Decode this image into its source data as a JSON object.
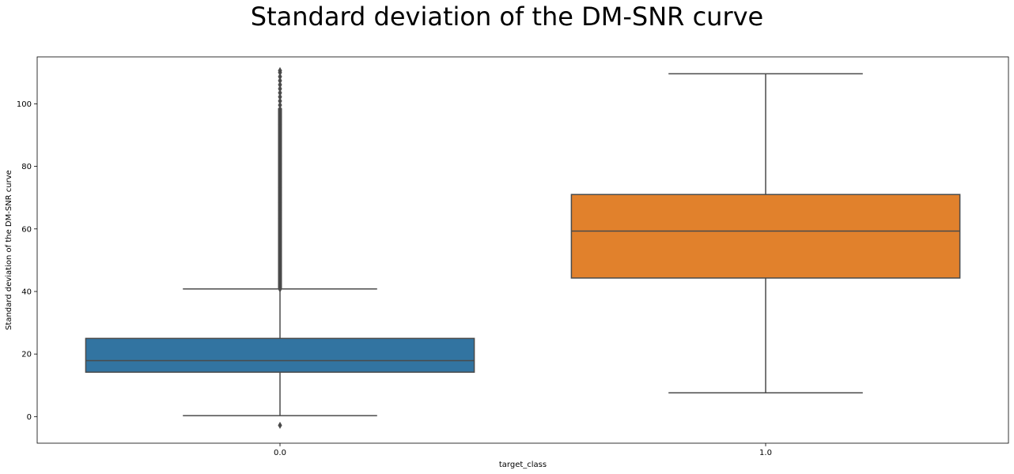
{
  "chart_data": {
    "type": "box",
    "title": "Standard deviation of the DM-SNR curve",
    "xlabel": "target_class",
    "ylabel": "Standard deviation of the DM-SNR curve",
    "categories": [
      "0.0",
      "1.0"
    ],
    "ylim": [
      -8.5,
      115
    ],
    "yticks": [
      0,
      20,
      40,
      60,
      80,
      100
    ],
    "grid": false,
    "boxes": [
      {
        "category": "0.0",
        "color": "#3274a1",
        "whisker_low": 0.3,
        "q1": 14.2,
        "median": 17.9,
        "q3": 25.0,
        "whisker_high": 40.8,
        "outliers_low": [
          -2.8
        ],
        "outliers_high_range": [
          40.8,
          110.6
        ]
      },
      {
        "category": "1.0",
        "color": "#e1812c",
        "whisker_low": 7.6,
        "q1": 44.3,
        "median": 59.3,
        "q3": 71.0,
        "whisker_high": 109.6,
        "outliers_low": [],
        "outliers_high_range": []
      }
    ]
  }
}
